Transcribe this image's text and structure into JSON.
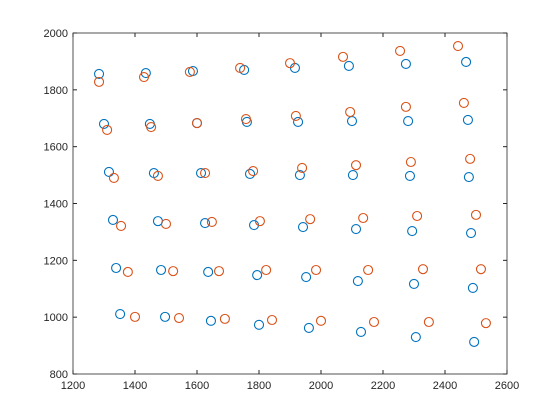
{
  "chart_data": {
    "type": "scatter",
    "xlim": [
      1200,
      2600
    ],
    "xticks": [
      1200,
      1400,
      1600,
      1800,
      2000,
      2200,
      2400,
      2600
    ],
    "ylim": [
      800,
      2000
    ],
    "yticks": [
      800,
      1000,
      1200,
      1400,
      1600,
      1800,
      2000
    ],
    "series": [
      {
        "color": "#0072bd",
        "x": [
          1284,
          1435,
          1587,
          1752,
          1916,
          2090,
          2274,
          2468,
          1300,
          1448,
          1600,
          1761,
          1926,
          2100,
          2281,
          2474,
          1316,
          1461,
          1613,
          1771,
          1932,
          2103,
          2287,
          2477,
          1329,
          1474,
          1626,
          1784,
          1942,
          2113,
          2294,
          2484,
          1339,
          1484,
          1636,
          1794,
          1952,
          2119,
          2300,
          2490,
          1352,
          1497,
          1645,
          1800,
          1961,
          2129,
          2306,
          2494
        ],
        "values": [
          1856,
          1859,
          1866,
          1870,
          1877,
          1884,
          1891,
          1898,
          1680,
          1680,
          1683,
          1687,
          1687,
          1690,
          1690,
          1694,
          1511,
          1507,
          1507,
          1504,
          1500,
          1500,
          1497,
          1493,
          1342,
          1338,
          1331,
          1324,
          1317,
          1310,
          1303,
          1296,
          1173,
          1166,
          1159,
          1148,
          1141,
          1127,
          1117,
          1103,
          1011,
          1001,
          987,
          973,
          962,
          948,
          930,
          913
        ]
      },
      {
        "color": "#d95319",
        "x": [
          1284,
          1429,
          1577,
          1739,
          1900,
          2071,
          2255,
          2442,
          1310,
          1452,
          1600,
          1758,
          1919,
          2094,
          2274,
          2461,
          1332,
          1474,
          1626,
          1781,
          1939,
          2113,
          2290,
          2481,
          1355,
          1500,
          1648,
          1803,
          1965,
          2136,
          2310,
          2500,
          1377,
          1523,
          1671,
          1823,
          1984,
          2152,
          2329,
          2516,
          1400,
          1542,
          1690,
          1842,
          2000,
          2171,
          2348,
          2532
        ],
        "values": [
          1828,
          1845,
          1863,
          1877,
          1894,
          1916,
          1937,
          1954,
          1659,
          1669,
          1683,
          1697,
          1708,
          1722,
          1740,
          1754,
          1490,
          1497,
          1507,
          1514,
          1525,
          1535,
          1546,
          1557,
          1321,
          1328,
          1335,
          1338,
          1345,
          1349,
          1356,
          1360,
          1159,
          1162,
          1162,
          1166,
          1166,
          1166,
          1169,
          1169,
          1001,
          997,
          994,
          990,
          987,
          983,
          983,
          979
        ]
      }
    ]
  }
}
